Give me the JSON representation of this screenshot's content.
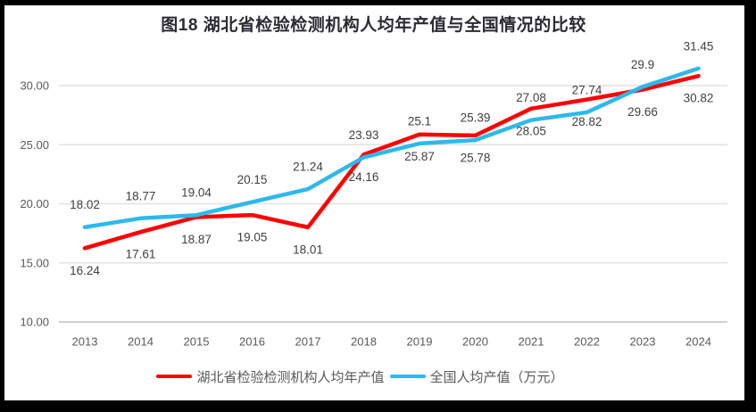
{
  "chart_data": {
    "type": "line",
    "title": "图18  湖北省检验检测机构人均年产值与全国情况的比较",
    "categories": [
      "2013",
      "2014",
      "2015",
      "2016",
      "2017",
      "2018",
      "2019",
      "2020",
      "2021",
      "2022",
      "2023",
      "2024"
    ],
    "series": [
      {
        "name": "湖北省检验检测机构人均年产值",
        "color": "#ff0000",
        "label_position": "below",
        "values": [
          16.24,
          17.61,
          18.87,
          19.05,
          18.01,
          24.16,
          25.87,
          25.78,
          28.05,
          28.82,
          29.66,
          30.82
        ]
      },
      {
        "name": "全国人均产值（万元）",
        "color": "#2db9eb",
        "label_position": "above",
        "values": [
          18.02,
          18.77,
          19.04,
          20.15,
          21.24,
          23.93,
          25.1,
          25.39,
          27.08,
          27.74,
          29.9,
          31.45
        ]
      }
    ],
    "y_axis": {
      "min": 10,
      "max": 32.5,
      "ticks": [
        10,
        15,
        20,
        25,
        30
      ],
      "tick_labels": [
        "10.00",
        "15.00",
        "20.00",
        "25.00",
        "30.00"
      ]
    },
    "grid": true,
    "legend_position": "bottom",
    "colors": {
      "grid": "#e2e2e2",
      "axis": "#bfbfbf",
      "tick_text": "#595959",
      "data_label_text": "#3f3f3f",
      "title_text": "#2b2b35",
      "legend_text": "#595959",
      "frame_border": "#000000",
      "background": "#ffffff"
    }
  }
}
